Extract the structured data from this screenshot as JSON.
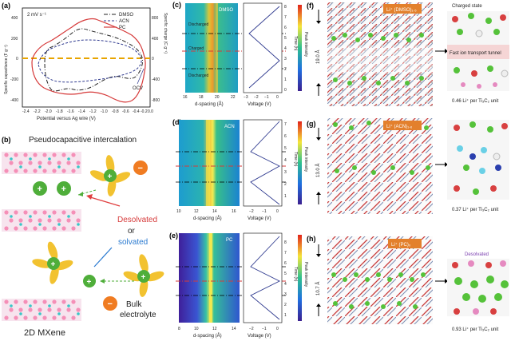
{
  "figure": {
    "panel_labels": [
      "(a)",
      "(b)",
      "(c)",
      "(d)",
      "(e)",
      "(f)",
      "(g)",
      "(h)"
    ],
    "colors": {
      "dmso": "#222222",
      "acn": "#2f3a8f",
      "pc": "#d63a3a",
      "ocv": "#e8a400",
      "mxene_ti": "#f58fb7",
      "mxene_c": "#39c7c7",
      "li": "#4fae3a",
      "anion": "#f07c22",
      "solvent": "#f2c230"
    }
  },
  "panel_a": {
    "scan_rate": "2 mV s⁻¹",
    "legend": [
      "DMSO",
      "ACN",
      "PC"
    ],
    "ylabel_left": "Specific capacitance (F g⁻¹)",
    "ylabel_right": "Specific charge (C g⁻¹)",
    "xlabel": "Potential versus Ag wire (V)",
    "ocv_label": "OCV",
    "x_ticks": [
      "-2.4",
      "-2.2",
      "-2.0",
      "-1.8",
      "-1.6",
      "-1.4",
      "-1.2",
      "-1.0",
      "-0.8",
      "-0.6",
      "-0.4",
      "-0.2",
      "0.0"
    ],
    "y_ticks_left": [
      "400",
      "200",
      "0",
      "-200",
      "-400"
    ],
    "y_ticks_right": [
      "800",
      "400",
      "0",
      "-400",
      "-800"
    ]
  },
  "panel_b": {
    "title": "Pseudocapacitive intercalation",
    "desolvated": "Desolvated",
    "or": "or",
    "solvated": "solvated",
    "bulk": [
      "Bulk",
      "electrolyte"
    ],
    "mxene": "2D MXene",
    "plus": "+",
    "minus": "−"
  },
  "panel_c": {
    "solvent": "DMSO",
    "xlabel": "d-spacing (Å)",
    "x_ticks": [
      "16",
      "18",
      "20",
      "22"
    ],
    "v_ticks": [
      "−3",
      "−2",
      "−1",
      "0"
    ],
    "time_ticks": [
      "0",
      "1",
      "2",
      "3",
      "4",
      "5",
      "6",
      "7",
      "8"
    ],
    "discharged": "Discharged",
    "charged": "Charged"
  },
  "panel_d": {
    "solvent": "ACN",
    "xlabel": "d-spacing (Å)",
    "x_ticks": [
      "10",
      "12",
      "14",
      "16"
    ],
    "v_ticks": [
      "−2",
      "−1",
      "0"
    ],
    "time_ticks": [
      "1",
      "2",
      "3",
      "4",
      "5",
      "6",
      "7"
    ]
  },
  "panel_e": {
    "solvent": "PC",
    "xlabel": "d-spacing (Å)",
    "x_ticks": [
      "8",
      "10",
      "12",
      "14"
    ],
    "v_ticks": [
      "−2",
      "−1",
      "0"
    ],
    "time_ticks": [
      "1",
      "2",
      "3",
      "4",
      "5",
      "6",
      "7",
      "8"
    ]
  },
  "shared_labels": {
    "voltage": "Voltage (V)",
    "time": "Time (h)",
    "peak_intensity": "Peak intensity"
  },
  "panel_f": {
    "title": "Li⁺ (DMSO)₁.₅",
    "spacing": "19.0 Å",
    "charged_state": "Charged state",
    "tunnel": "Fast ion transport tunnel",
    "caption": "0.46 Li⁺ per Ti₃C₂ unit"
  },
  "panel_g": {
    "title": "Li⁺ (ACN)₁.₆",
    "spacing": "13.0 Å",
    "caption": "0.37 Li⁺ per Ti₃C₂ unit"
  },
  "panel_h": {
    "title": "Li⁺ (PC)₀",
    "spacing": "10.7 Å",
    "desolvated": "Desolvated",
    "caption": "0.93 Li⁺ per Ti₃C₂ unit"
  }
}
